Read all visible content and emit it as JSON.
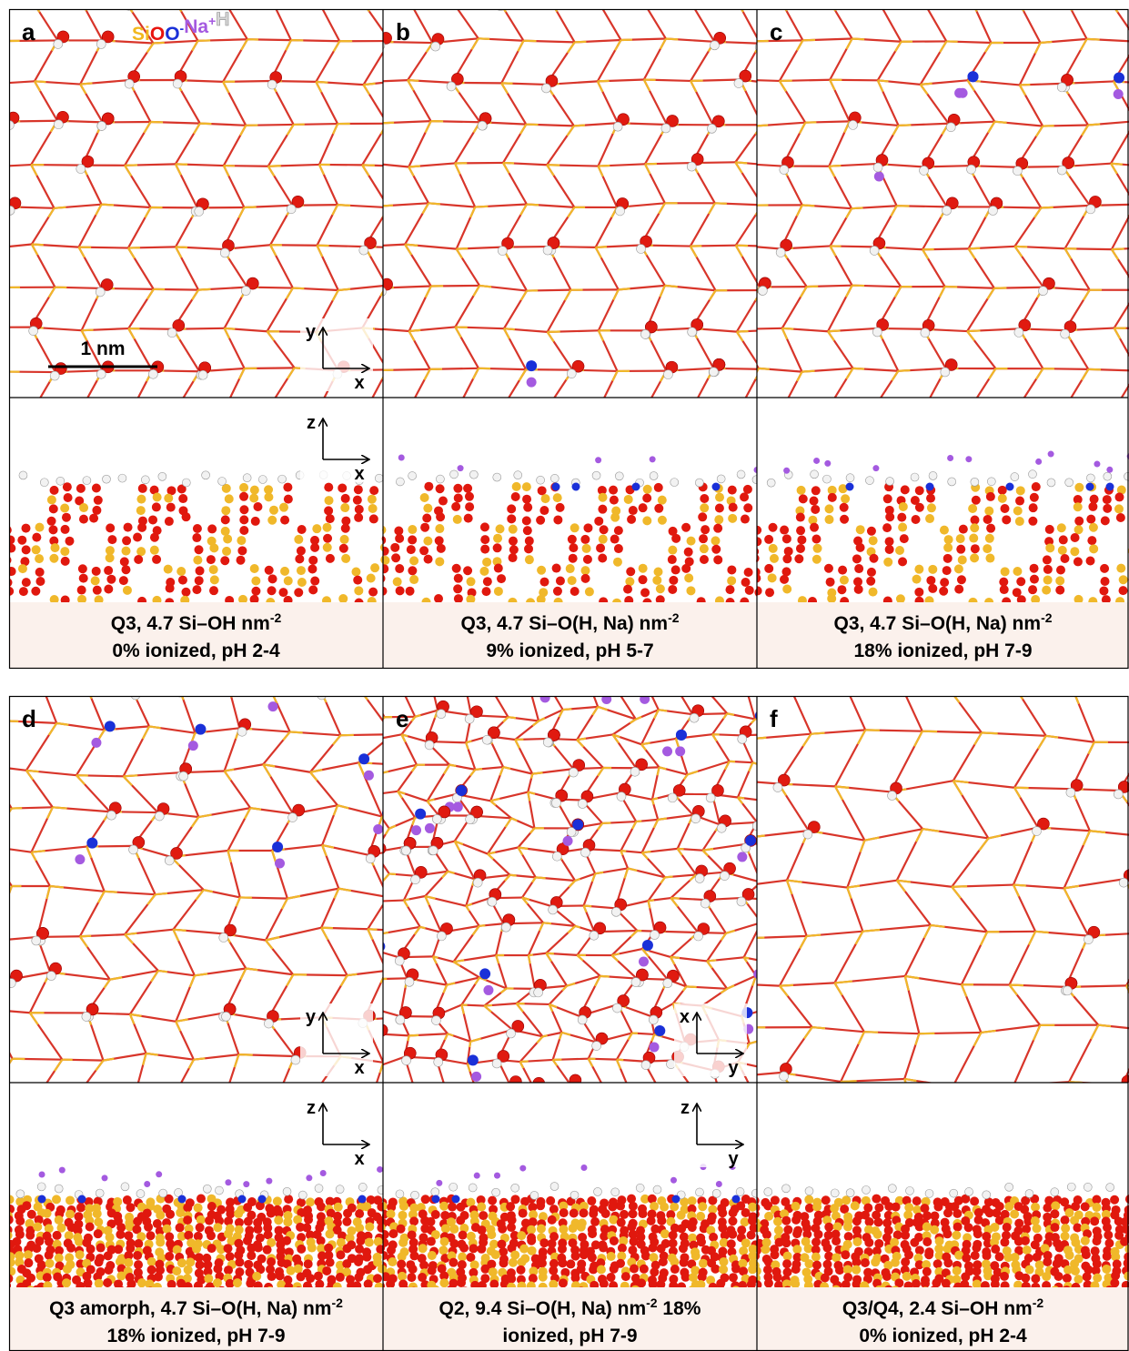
{
  "legend": [
    {
      "label": "Si",
      "color": "#f2b81e"
    },
    {
      "label": "O",
      "color": "#e8140e"
    },
    {
      "label": "O",
      "superscript": "-",
      "color": "#1a30d8"
    },
    {
      "label": "Na",
      "superscript": "+",
      "color": "#a45ae0"
    },
    {
      "label": "H",
      "color": "#d8d8d8"
    }
  ],
  "scale_bar": "1 nm",
  "panels": [
    {
      "letter": "a",
      "top_axes": [
        "y",
        "x"
      ],
      "side_axes": [
        "z",
        "x"
      ],
      "caption": {
        "line1": "Q3, 4.7 Si–OH nm",
        "line1_sup": "-2",
        "line2": "0% ionized, pH 2-4"
      }
    },
    {
      "letter": "b",
      "caption": {
        "line1": "Q3, 4.7 Si–O(H, Na) nm",
        "line1_sup": "-2",
        "line2": "9% ionized, pH 5-7"
      }
    },
    {
      "letter": "c",
      "caption": {
        "line1": "Q3, 4.7 Si–O(H, Na) nm",
        "line1_sup": "-2",
        "line2": "18% ionized, pH 7-9"
      }
    },
    {
      "letter": "d",
      "top_axes": [
        "y",
        "x"
      ],
      "side_axes": [
        "z",
        "x"
      ],
      "caption": {
        "line1": "Q3 amorph, 4.7 Si–O(H, Na) nm",
        "line1_sup": "-2",
        "line2": "18% ionized, pH 7-9"
      }
    },
    {
      "letter": "e",
      "top_axes": [
        "x",
        "y"
      ],
      "side_axes": [
        "z",
        "y"
      ],
      "caption": {
        "line1": "Q2, 9.4 Si–O(H, Na) nm",
        "line1_sup": "-2",
        "line1_post": " 18%",
        "line2": "ionized, pH 7-9"
      }
    },
    {
      "letter": "f",
      "caption": {
        "line1": "Q3/Q4, 2.4 Si–OH nm",
        "line1_sup": "-2",
        "line2": "0% ionized, pH 2-4"
      }
    }
  ]
}
